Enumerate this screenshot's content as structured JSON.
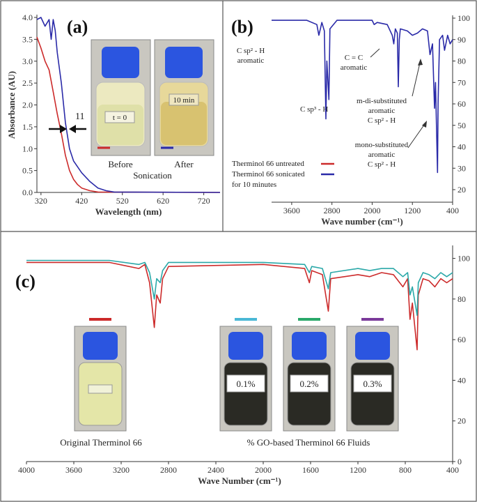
{
  "chart_data": [
    {
      "panel": "(a)",
      "type": "line",
      "xlabel": "Wavelength (nm)",
      "ylabel": "Absorbance (AU)",
      "xlim": [
        310,
        760
      ],
      "ylim": [
        0,
        4.0
      ],
      "xticks": [
        "320",
        "420",
        "520",
        "620",
        "720"
      ],
      "yticks": [
        "0.0",
        "0.5",
        "1.0",
        "1.5",
        "2.0",
        "2.5",
        "3.0",
        "3.5",
        "4.0"
      ],
      "annotation_value": "11",
      "photos": {
        "before_label": "t = 0",
        "after_label": "10 min",
        "before": "Before",
        "after": "After",
        "caption": "Sonication"
      },
      "series": [
        {
          "color": "#cc2a2a",
          "points": [
            [
              310,
              3.55
            ],
            [
              320,
              3.3
            ],
            [
              330,
              3.0
            ],
            [
              340,
              2.8
            ],
            [
              350,
              2.3
            ],
            [
              360,
              1.8
            ],
            [
              370,
              1.35
            ],
            [
              380,
              0.85
            ],
            [
              390,
              0.5
            ],
            [
              400,
              0.3
            ],
            [
              410,
              0.18
            ],
            [
              420,
              0.1
            ],
            [
              440,
              0.04
            ],
            [
              460,
              0.01
            ],
            [
              760,
              0.0
            ]
          ]
        },
        {
          "color": "#2a2aa8",
          "points": [
            [
              310,
              3.95
            ],
            [
              320,
              4.0
            ],
            [
              330,
              3.8
            ],
            [
              340,
              3.95
            ],
            [
              345,
              3.5
            ],
            [
              350,
              3.95
            ],
            [
              355,
              3.7
            ],
            [
              360,
              3.2
            ],
            [
              370,
              2.5
            ],
            [
              380,
              1.6
            ],
            [
              390,
              1.0
            ],
            [
              400,
              0.72
            ],
            [
              420,
              0.45
            ],
            [
              440,
              0.25
            ],
            [
              460,
              0.1
            ],
            [
              480,
              0.04
            ],
            [
              500,
              0.01
            ],
            [
              760,
              0.0
            ]
          ]
        }
      ]
    },
    {
      "panel": "(b)",
      "type": "line",
      "xlabel": "Wave number (cm⁻¹)",
      "xlim": [
        4000,
        400
      ],
      "ylim": [
        20,
        100
      ],
      "xticks": [
        "3600",
        "2800",
        "2000",
        "1200",
        "400"
      ],
      "yticks": [
        "20",
        "30",
        "40",
        "50",
        "60",
        "70",
        "80",
        "90",
        "100"
      ],
      "annotations": [
        {
          "lines": [
            "C sp² - H",
            "aromatic"
          ]
        },
        {
          "lines": [
            "C sp³ - H"
          ]
        },
        {
          "lines": [
            "C = C",
            "aromatic"
          ]
        },
        {
          "lines": [
            "m-di-substituted",
            "aromatic",
            "C sp² - H"
          ]
        },
        {
          "lines": [
            "mono-substituted",
            "aromatic",
            "C sp² - H"
          ]
        }
      ],
      "legend": [
        {
          "label": "Therminol 66 untreated",
          "color": "#cc2a2a"
        },
        {
          "label": "Therminol 66 sonicated",
          "color": "#2a2aa8"
        },
        {
          "label": "for 10 minutes",
          "color": ""
        }
      ],
      "series": [
        {
          "color": "#2a2aa8",
          "points": [
            [
              4000,
              99
            ],
            [
              3600,
              99
            ],
            [
              3300,
              99
            ],
            [
              3100,
              97
            ],
            [
              3060,
              92
            ],
            [
              3030,
              95
            ],
            [
              3000,
              98
            ],
            [
              2950,
              94
            ],
            [
              2920,
              53
            ],
            [
              2900,
              80
            ],
            [
              2860,
              62
            ],
            [
              2840,
              95
            ],
            [
              2700,
              99
            ],
            [
              2000,
              99
            ],
            [
              1960,
              97
            ],
            [
              1900,
              98
            ],
            [
              1700,
              97
            ],
            [
              1600,
              92
            ],
            [
              1570,
              88
            ],
            [
              1540,
              95
            ],
            [
              1500,
              93
            ],
            [
              1480,
              68
            ],
            [
              1460,
              90
            ],
            [
              1440,
              95
            ],
            [
              1300,
              94
            ],
            [
              1200,
              92
            ],
            [
              1100,
              93
            ],
            [
              1000,
              95
            ],
            [
              900,
              94
            ],
            [
              850,
              83
            ],
            [
              800,
              88
            ],
            [
              760,
              58
            ],
            [
              740,
              70
            ],
            [
              700,
              28
            ],
            [
              690,
              60
            ],
            [
              660,
              90
            ],
            [
              600,
              92
            ],
            [
              560,
              85
            ],
            [
              500,
              92
            ],
            [
              450,
              88
            ],
            [
              400,
              90
            ]
          ]
        }
      ]
    },
    {
      "panel": "(c)",
      "type": "line",
      "xlabel": "Wave Number (cm⁻¹)",
      "xlim": [
        4000,
        400
      ],
      "ylim": [
        0,
        105
      ],
      "xticks": [
        "4000",
        "3600",
        "3200",
        "2800",
        "2400",
        "2000",
        "1600",
        "1200",
        "800",
        "400"
      ],
      "yticks": [
        "0",
        "20",
        "40",
        "60",
        "80",
        "100"
      ],
      "photos": [
        {
          "label": "",
          "color": "#cc2a2a",
          "liquid": "#e4e6a8"
        },
        {
          "label": "0.1%",
          "color": "#4ab8d6",
          "liquid": "#2a2a24"
        },
        {
          "label": "0.2%",
          "color": "#2aa86a",
          "liquid": "#2a2a24"
        },
        {
          "label": "0.3%",
          "color": "#7a3a9a",
          "liquid": "#2a2a24"
        }
      ],
      "captions": [
        "Original Therminol 66",
        "% GO-based Therminol 66 Fluids"
      ],
      "series": [
        {
          "color": "#cc2a2a",
          "points": [
            [
              4000,
              98
            ],
            [
              3300,
              98
            ],
            [
              3050,
              95
            ],
            [
              3000,
              97
            ],
            [
              2960,
              88
            ],
            [
              2920,
              66
            ],
            [
              2900,
              82
            ],
            [
              2870,
              78
            ],
            [
              2850,
              90
            ],
            [
              2800,
              96
            ],
            [
              2000,
              97
            ],
            [
              1650,
              95
            ],
            [
              1610,
              88
            ],
            [
              1590,
              94
            ],
            [
              1500,
              92
            ],
            [
              1450,
              74
            ],
            [
              1430,
              90
            ],
            [
              1200,
              92
            ],
            [
              1100,
              91
            ],
            [
              1000,
              93
            ],
            [
              900,
              92
            ],
            [
              820,
              86
            ],
            [
              780,
              90
            ],
            [
              760,
              70
            ],
            [
              740,
              78
            ],
            [
              700,
              55
            ],
            [
              690,
              82
            ],
            [
              650,
              90
            ],
            [
              600,
              89
            ],
            [
              550,
              86
            ],
            [
              500,
              90
            ],
            [
              450,
              88
            ],
            [
              400,
              90
            ]
          ]
        },
        {
          "color": "#2aa8a8",
          "points": [
            [
              4000,
              99
            ],
            [
              3300,
              99
            ],
            [
              3050,
              97
            ],
            [
              3000,
              98
            ],
            [
              2960,
              93
            ],
            [
              2920,
              80
            ],
            [
              2900,
              90
            ],
            [
              2870,
              88
            ],
            [
              2850,
              94
            ],
            [
              2800,
              98
            ],
            [
              2000,
              98
            ],
            [
              1650,
              97
            ],
            [
              1610,
              93
            ],
            [
              1590,
              96
            ],
            [
              1500,
              95
            ],
            [
              1450,
              85
            ],
            [
              1430,
              93
            ],
            [
              1200,
              95
            ],
            [
              1100,
              94
            ],
            [
              1000,
              95
            ],
            [
              900,
              95
            ],
            [
              820,
              91
            ],
            [
              780,
              93
            ],
            [
              760,
              82
            ],
            [
              740,
              86
            ],
            [
              700,
              72
            ],
            [
              690,
              88
            ],
            [
              650,
              93
            ],
            [
              600,
              92
            ],
            [
              550,
              90
            ],
            [
              500,
              93
            ],
            [
              450,
              91
            ],
            [
              400,
              93
            ]
          ]
        }
      ]
    }
  ]
}
